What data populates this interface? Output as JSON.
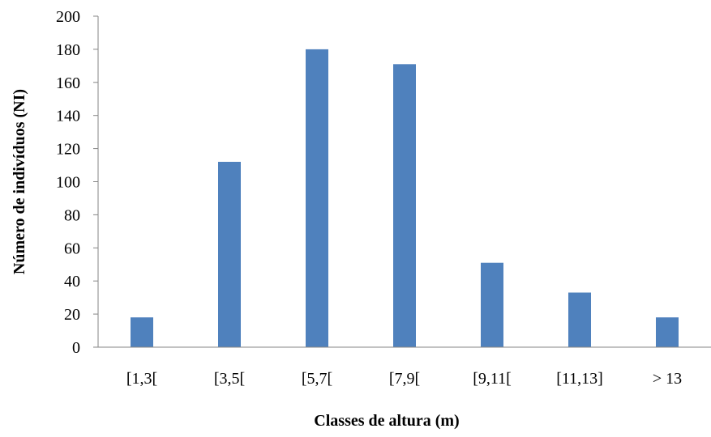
{
  "chart_data": {
    "type": "bar",
    "title": "",
    "xlabel": "Classes de altura (m)",
    "ylabel": "Número de indivíduos (NI)",
    "categories": [
      "[1,3[",
      "[3,5[",
      "[5,7[",
      "[7,9[",
      "[9,11[",
      "[11,13]",
      "> 13"
    ],
    "values": [
      18,
      112,
      180,
      171,
      51,
      33,
      18
    ],
    "ylim": [
      0,
      200
    ],
    "yticks": [
      0,
      20,
      40,
      60,
      80,
      100,
      120,
      140,
      160,
      180,
      200
    ],
    "grid": false,
    "legend": "none",
    "bar_color": "#4F81BD"
  }
}
